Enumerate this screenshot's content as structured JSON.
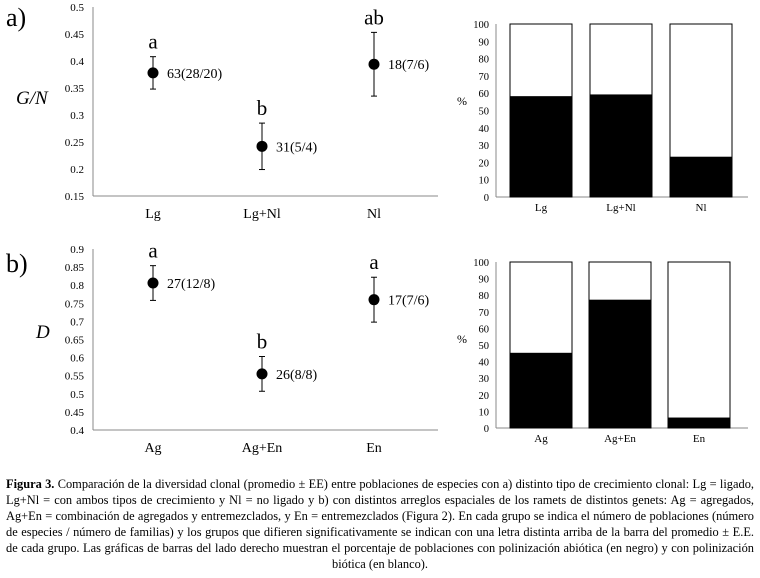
{
  "figure": {
    "panel_a": {
      "label": "a)",
      "ylabel": "G/N",
      "yticks": [
        "0.5",
        "0.45",
        "0.4",
        "0.35",
        "0.3",
        "0.25",
        "0.2",
        "0.15"
      ],
      "categories": [
        "Lg",
        "Lg+Nl",
        "Nl"
      ],
      "letters": [
        "a",
        "b",
        "ab"
      ],
      "annotations": [
        "63(28/20)",
        "31(5/4)",
        "18(7/6)"
      ]
    },
    "panel_b": {
      "label": "b)",
      "ylabel": "D",
      "yticks": [
        "0.9",
        "0.85",
        "0.8",
        "0.75",
        "0.7",
        "0.65",
        "0.6",
        "0.55",
        "0.5",
        "0.45",
        "0.4"
      ],
      "categories": [
        "Ag",
        "Ag+En",
        "En"
      ],
      "letters": [
        "a",
        "b",
        "a"
      ],
      "annotations": [
        "27(12/8)",
        "26(8/8)",
        "17(7/6)"
      ]
    },
    "bars_a": {
      "ylabel": "%",
      "yticks": [
        "100",
        "90",
        "80",
        "70",
        "60",
        "50",
        "40",
        "30",
        "20",
        "10",
        "0"
      ],
      "categories": [
        "Lg",
        "Lg+Nl",
        "Nl"
      ]
    },
    "bars_b": {
      "ylabel": "%",
      "yticks": [
        "100",
        "90",
        "80",
        "70",
        "60",
        "50",
        "40",
        "30",
        "20",
        "10",
        "0"
      ],
      "categories": [
        "Ag",
        "Ag+En",
        "En"
      ]
    }
  },
  "chart_data": [
    {
      "type": "scatter",
      "panel": "a",
      "categories": [
        "Lg",
        "Lg+Nl",
        "Nl"
      ],
      "values": [
        0.378,
        0.242,
        0.394
      ],
      "error": [
        0.03,
        0.043,
        0.059
      ],
      "ylim": [
        0.15,
        0.5
      ],
      "ylabel": "G/N"
    },
    {
      "type": "scatter",
      "panel": "b",
      "categories": [
        "Ag",
        "Ag+En",
        "En"
      ],
      "values": [
        0.806,
        0.555,
        0.76
      ],
      "error": [
        0.048,
        0.048,
        0.062
      ],
      "ylim": [
        0.4,
        0.9
      ],
      "ylabel": "D"
    },
    {
      "type": "bar",
      "panel": "a",
      "stacked": true,
      "categories": [
        "Lg",
        "Lg+Nl",
        "Nl"
      ],
      "series": [
        {
          "values": [
            58,
            59,
            23
          ],
          "color": "#000000"
        },
        {
          "values": [
            42,
            41,
            77
          ],
          "color": "#ffffff"
        }
      ],
      "ylim": [
        0,
        100
      ],
      "ylabel": "%"
    },
    {
      "type": "bar",
      "panel": "b",
      "stacked": true,
      "categories": [
        "Ag",
        "Ag+En",
        "En"
      ],
      "series": [
        {
          "values": [
            45,
            77,
            6
          ],
          "color": "#000000"
        },
        {
          "values": [
            55,
            23,
            94
          ],
          "color": "#ffffff"
        }
      ],
      "ylim": [
        0,
        100
      ],
      "ylabel": "%"
    }
  ],
  "caption": {
    "bold": "Figura 3.",
    "text": " Comparación de la diversidad clonal (promedio ± EE) entre poblaciones de especies con a) distinto tipo de crecimiento clonal: Lg = ligado, Lg+Nl = con ambos tipos de crecimiento y Nl = no ligado y b) con distintos arreglos espaciales de los ramets de distintos genets: Ag = agregados, Ag+En = combinación de agregados y entremezclados, y En = entremezclados (Figura 2). En cada grupo se indica el número de poblaciones (número de especies / número de familias) y los grupos que difieren significativamente se indican con una letra distinta arriba de la barra del promedio ± E.E. de cada grupo. Las gráficas de barras del lado derecho muestran el porcentaje de poblaciones con polinización abiótica (en negro) y con polinización biótica (en blanco)."
  }
}
